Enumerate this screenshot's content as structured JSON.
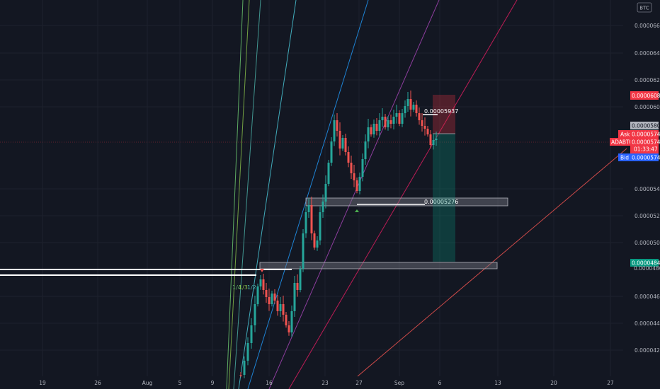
{
  "currency_badge": "BTC",
  "price_axis": {
    "ticks": [
      "0.00006600",
      "0.00006400",
      "0.00006200",
      "0.00006000",
      "0.00005400",
      "0.00005200",
      "0.00005000",
      "0.00004600",
      "0.00004400",
      "0.00004200"
    ]
  },
  "price_labels": {
    "stop_level": "0.00006086",
    "gray_level": "0.00005803",
    "ask_tag": "Ask",
    "ask_price": "0.00005741",
    "symbol_tag": "ADABTC",
    "last_price": "0.00005741",
    "countdown": "01:33:47",
    "bid_tag": "Bid",
    "bid_price": "0.00005740",
    "target_level": "0.00004842",
    "target_hidden_tick": "0.00004800"
  },
  "annotations": {
    "high_level": "0.00005937",
    "support_level": "0.00005276",
    "fib_label_a": "1/4",
    "fib_label_b": "1/3",
    "fib_label_c": "1/2"
  },
  "time_axis": {
    "ticks": [
      "19",
      "26",
      "Aug",
      "5",
      "9",
      "16",
      "23",
      "27",
      "Sep",
      "6",
      "13",
      "20",
      "27"
    ]
  },
  "colors": {
    "background": "#131722",
    "up": "#26a69a",
    "down": "#ef5350",
    "last_price": "#f23645",
    "bid": "#2962ff",
    "target": "#089981",
    "gray": "#787b86",
    "fan_pink": "#e91e63",
    "fan_magenta": "#ab47bc",
    "fan_blue": "#2196f3",
    "fan_cyan": "#4dd0e1",
    "fan_green": "#66bb6a"
  },
  "icons": {
    "arrow_up_marker": "triangle-up",
    "arrow_down_marker": "triangle-down"
  }
}
